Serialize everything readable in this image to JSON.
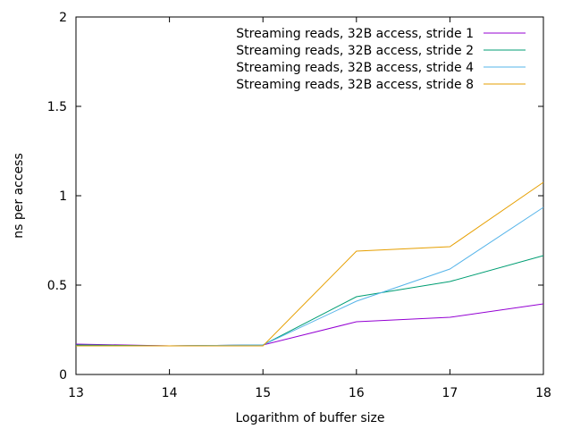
{
  "chart_data": {
    "type": "line",
    "xlabel": "Logarithm of buffer size",
    "ylabel": "ns per access",
    "xlim": [
      13,
      18
    ],
    "ylim": [
      0,
      2
    ],
    "x": [
      13,
      14,
      15,
      16,
      17,
      18
    ],
    "x_ticks": [
      13,
      14,
      15,
      16,
      17,
      18
    ],
    "y_ticks": [
      0,
      0.5,
      1,
      1.5,
      2
    ],
    "y_tick_labels": [
      "0",
      "0.5",
      "1",
      "1.5",
      "2"
    ],
    "grid": false,
    "legend_position": "top-right",
    "series": [
      {
        "name": "Streaming reads, 32B access, stride 1",
        "color": "#9400d3",
        "values": [
          0.17,
          0.16,
          0.165,
          0.295,
          0.32,
          0.395
        ]
      },
      {
        "name": "Streaming reads, 32B access, stride 2",
        "color": "#009e73",
        "values": [
          0.165,
          0.16,
          0.165,
          0.435,
          0.52,
          0.665
        ]
      },
      {
        "name": "Streaming reads, 32B access, stride 4",
        "color": "#56b4e9",
        "values": [
          0.16,
          0.16,
          0.165,
          0.41,
          0.59,
          0.935
        ]
      },
      {
        "name": "Streaming reads, 32B access, stride 8",
        "color": "#e69f00",
        "values": [
          0.16,
          0.16,
          0.16,
          0.69,
          0.715,
          1.075
        ]
      }
    ]
  }
}
